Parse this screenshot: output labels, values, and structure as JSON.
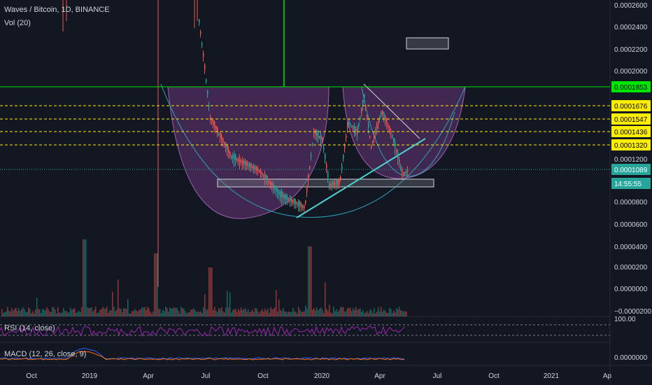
{
  "header": {
    "symbol_line": "Waves / Bitcoin, 1D, BINANCE",
    "volume_label": "Vol (20)"
  },
  "indicators": {
    "rsi_label": "RSI (14, close)",
    "rsi_axis": "100.00",
    "macd_label": "MACD (12, 26, close, 9)",
    "macd_axis": "0.0000000"
  },
  "price_axis": {
    "ticks": [
      "0.0002600",
      "0.0002400",
      "0.0002200",
      "0.0002000",
      "0.0001200",
      "0.0000800",
      "0.0000600",
      "0.0000400",
      "0.0000200",
      "0.0000000",
      "−0.0000200"
    ],
    "volume_ticks": [
      "0.0000400",
      "0.0000200",
      "0.0000000",
      "−0.0000200"
    ]
  },
  "price_tags": [
    {
      "label": "0.0001853",
      "color": "#00e600",
      "text_color": "#000000"
    },
    {
      "label": "0.0001676",
      "color": "#ffee00",
      "text_color": "#000000"
    },
    {
      "label": "0.0001547",
      "color": "#ffee00",
      "text_color": "#000000"
    },
    {
      "label": "0.0001436",
      "color": "#ffee00",
      "text_color": "#000000"
    },
    {
      "label": "0.0001320",
      "color": "#ffee00",
      "text_color": "#000000"
    },
    {
      "label": "0.0001089",
      "color": "#26a69a",
      "text_color": "#ffffff"
    },
    {
      "label": "14:55:55",
      "color": "#26a69a",
      "text_color": "#ffffff"
    }
  ],
  "time_axis": {
    "labels": [
      "Oct",
      "2019",
      "Apr",
      "Jul",
      "Oct",
      "2020",
      "Apr",
      "Jul",
      "Oct",
      "2021",
      "Ap"
    ]
  },
  "colors": {
    "background": "#131722",
    "up": "#26a69a",
    "down": "#ef5350",
    "resistance": "#00e600",
    "fib": "#ffee00",
    "cup_fill": "#7b3f8c",
    "trendline": "#4dd0d0",
    "rsi": "#9c27b0"
  }
}
